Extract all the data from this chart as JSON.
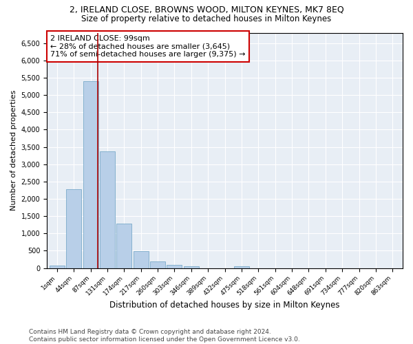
{
  "title": "2, IRELAND CLOSE, BROWNS WOOD, MILTON KEYNES, MK7 8EQ",
  "subtitle": "Size of property relative to detached houses in Milton Keynes",
  "xlabel": "Distribution of detached houses by size in Milton Keynes",
  "ylabel": "Number of detached properties",
  "footer_line1": "Contains HM Land Registry data © Crown copyright and database right 2024.",
  "footer_line2": "Contains public sector information licensed under the Open Government Licence v3.0.",
  "annotation_line1": "2 IRELAND CLOSE: 99sqm",
  "annotation_line2": "← 28% of detached houses are smaller (3,645)",
  "annotation_line3": "71% of semi-detached houses are larger (9,375) →",
  "bar_color": "#b8cfe8",
  "bar_edge_color": "#7aaaca",
  "vline_color": "#aa0000",
  "vline_x": 2.42,
  "categories": [
    "1sqm",
    "44sqm",
    "87sqm",
    "131sqm",
    "174sqm",
    "217sqm",
    "260sqm",
    "303sqm",
    "346sqm",
    "389sqm",
    "432sqm",
    "475sqm",
    "518sqm",
    "561sqm",
    "604sqm",
    "648sqm",
    "691sqm",
    "734sqm",
    "777sqm",
    "820sqm",
    "863sqm"
  ],
  "values": [
    70,
    2280,
    5400,
    3380,
    1280,
    480,
    195,
    100,
    60,
    0,
    0,
    55,
    0,
    0,
    0,
    0,
    0,
    0,
    0,
    0,
    0
  ],
  "ylim": [
    0,
    6800
  ],
  "yticks": [
    0,
    500,
    1000,
    1500,
    2000,
    2500,
    3000,
    3500,
    4000,
    4500,
    5000,
    5500,
    6000,
    6500
  ],
  "background_color": "#e8eef5",
  "title_fontsize": 9,
  "subtitle_fontsize": 8.5,
  "xlabel_fontsize": 8.5,
  "ylabel_fontsize": 8,
  "footer_fontsize": 6.5,
  "annotation_fontsize": 8
}
